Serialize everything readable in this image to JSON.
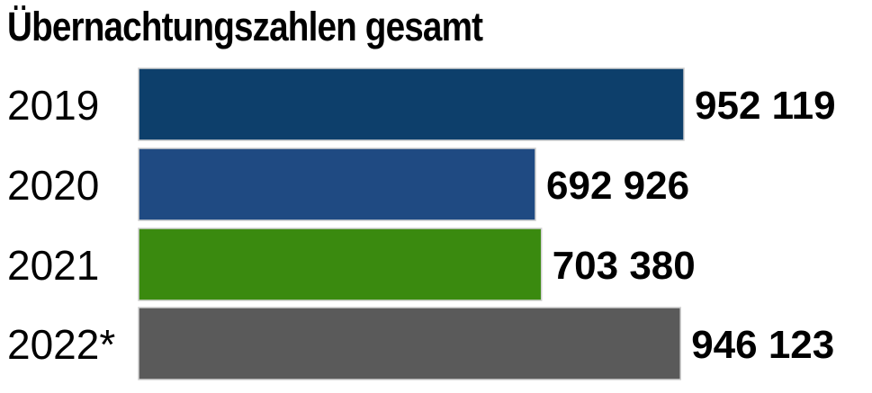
{
  "chart_data": {
    "type": "bar",
    "orientation": "horizontal",
    "title": "Übernachtungszahlen gesamt",
    "xlabel": "",
    "ylabel": "",
    "xlim": [
      0,
      952119
    ],
    "grid": false,
    "legend": "none",
    "categories": [
      "2019",
      "2020",
      "2021",
      "2022*"
    ],
    "values": [
      952119,
      692926,
      703380,
      946123
    ],
    "value_labels": [
      "952 119",
      "692 926",
      "703 380",
      "946 123"
    ],
    "bar_colors": [
      "#0d3f6b",
      "#1f4a82",
      "#3a8a0f",
      "#5a5a5a"
    ],
    "bar_border_color": "#cfcfcf"
  }
}
